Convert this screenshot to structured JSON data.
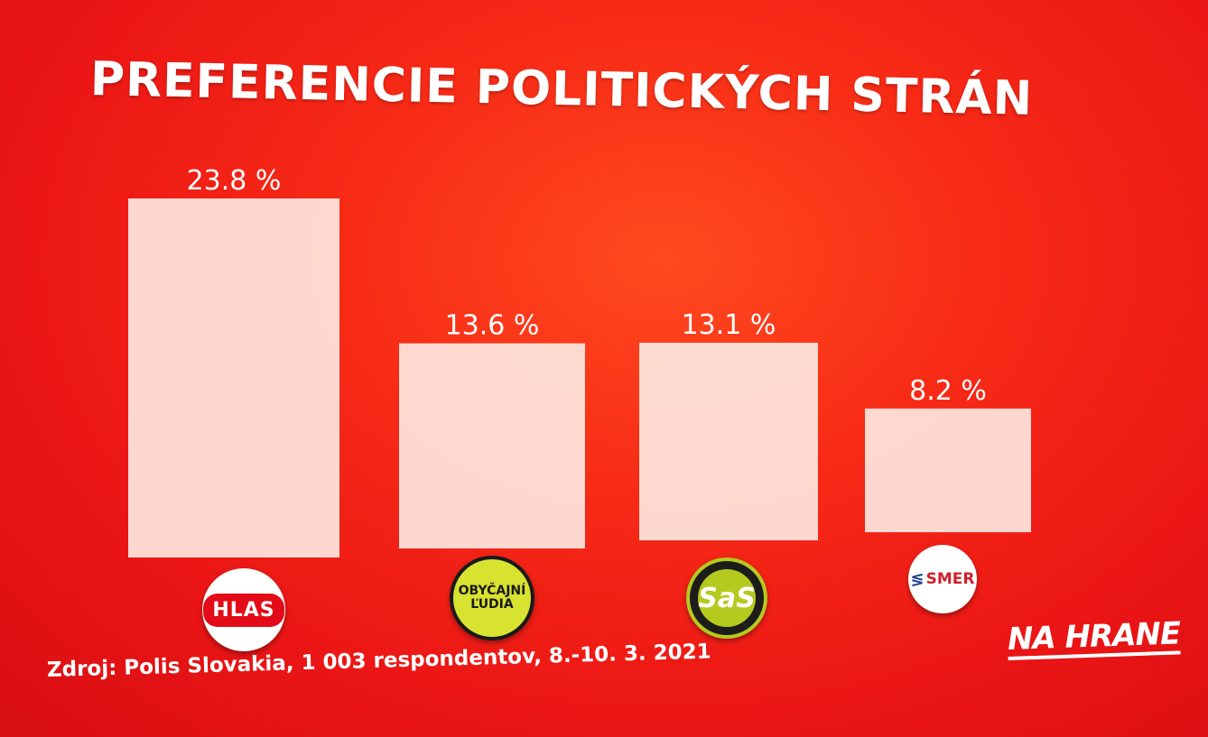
{
  "title": "PREFERENCIE POLITICKÝCH STRÁN",
  "source": "Zdroj: Polis Slovakia, 1 003 respondentov, 8.-10. 3. 2021",
  "brand": "NA HRANE",
  "logos": {
    "hlas": "HLAS",
    "ol": "OBYČAJNÍ ĽUDIA",
    "sas": "SaS",
    "smer": "SMER"
  },
  "colors": {
    "background": "#ea1515",
    "bar": "#fde6df",
    "text": "#ffffff"
  },
  "chart_data": {
    "type": "bar",
    "title": "PREFERENCIE POLITICKÝCH STRÁN",
    "categories": [
      "HLAS",
      "OBYČAJNÍ ĽUDIA",
      "SaS",
      "SMER"
    ],
    "values": [
      23.8,
      13.6,
      13.1,
      8.2
    ],
    "data_labels": [
      "23.8 %",
      "13.6 %",
      "13.1 %",
      "8.2 %"
    ],
    "unit": "%",
    "ylim": [
      0,
      23.8
    ],
    "grid": false,
    "legend": "none"
  }
}
